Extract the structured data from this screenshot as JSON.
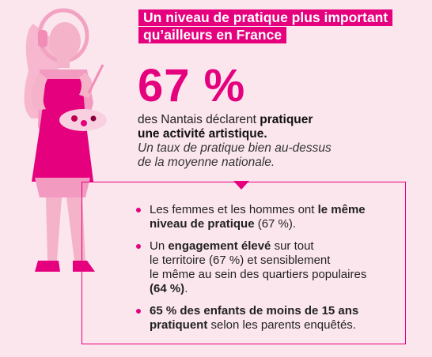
{
  "title": {
    "line1": "Un niveau de pratique plus important",
    "line2": "qu’ailleurs en France"
  },
  "stat": {
    "value": "67 %",
    "text_before": "des Nantais déclarent ",
    "text_bold1": "pratiquer",
    "text_bold2": "une activité artistique.",
    "subtitle_line1": "Un taux de pratique bien au-dessus",
    "subtitle_line2": "de la moyenne nationale."
  },
  "bullets": [
    {
      "part1": "Les femmes et les hommes ont ",
      "bold1": "le même",
      "bold2": "niveau de pratique",
      "part2": " (67 %)."
    },
    {
      "part1": "Un ",
      "bold1": "engagement élevé",
      "part2": " sur tout",
      "line2": "le territoire (67 %) et sensiblement",
      "line3": "le même au sein des quartiers populaires",
      "bold2": "(64 %)",
      "part3": "."
    },
    {
      "bold1": "65 % des enfants de moins de 15 ans",
      "bold2": "pratiquent",
      "part2": " selon les parents enquêtés."
    }
  ],
  "colors": {
    "accent": "#e5007e",
    "background": "#fce6ee",
    "light_pink": "#f5a3c7"
  },
  "illustration": "woman-painter-with-headphones-and-palette"
}
